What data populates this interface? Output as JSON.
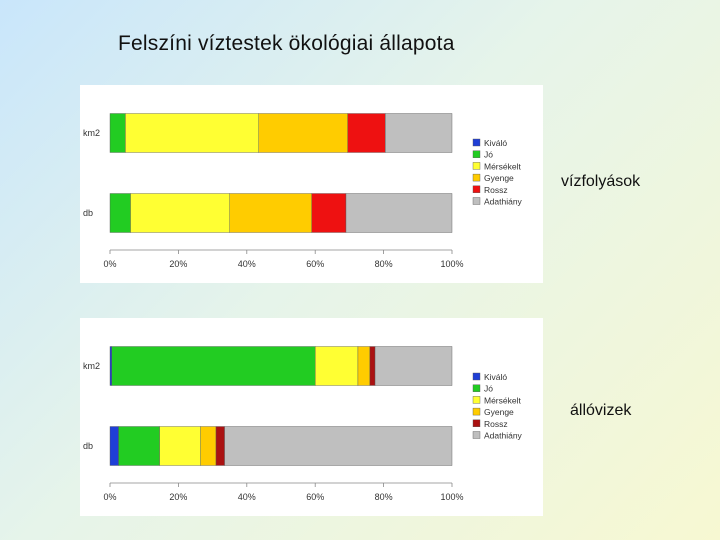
{
  "page": {
    "title": "Felszíni víztestek ökológiai állapota"
  },
  "labels": {
    "first": "vízfolyások",
    "second": "állóvizek"
  },
  "chart_data": [
    {
      "type": "bar",
      "orientation": "horizontal",
      "stacked": true,
      "categories": [
        "km2",
        "db"
      ],
      "series": [
        {
          "name": "Kiváló",
          "color": "#1f3fd6",
          "values": [
            0,
            0
          ]
        },
        {
          "name": "Jó",
          "color": "#22cc22",
          "values": [
            4.5,
            6
          ]
        },
        {
          "name": "Mérsékelt",
          "color": "#ffff33",
          "values": [
            39,
            29
          ]
        },
        {
          "name": "Gyenge",
          "color": "#ffcc00",
          "values": [
            26,
            24
          ]
        },
        {
          "name": "Rossz",
          "color": "#ee1111",
          "values": [
            11,
            10
          ]
        },
        {
          "name": "Adathiány",
          "color": "#bfbfbf",
          "values": [
            19.5,
            31
          ]
        }
      ],
      "xticks": [
        "0%",
        "20%",
        "40%",
        "60%",
        "80%",
        "100%"
      ],
      "xlim": [
        0,
        100
      ],
      "grid": false,
      "legend": "right"
    },
    {
      "type": "bar",
      "orientation": "horizontal",
      "stacked": true,
      "categories": [
        "km2",
        "db"
      ],
      "series": [
        {
          "name": "Kiváló",
          "color": "#1f3fd6",
          "values": [
            0.5,
            2.5
          ]
        },
        {
          "name": "Jó",
          "color": "#22cc22",
          "values": [
            59.5,
            12
          ]
        },
        {
          "name": "Mérsékelt",
          "color": "#ffff33",
          "values": [
            12.5,
            12
          ]
        },
        {
          "name": "Gyenge",
          "color": "#ffcc00",
          "values": [
            3.5,
            4.5
          ]
        },
        {
          "name": "Rossz",
          "color": "#aa1111",
          "values": [
            1.5,
            2.5
          ]
        },
        {
          "name": "Adathiány",
          "color": "#bfbfbf",
          "values": [
            22.5,
            66.5
          ]
        }
      ],
      "xticks": [
        "0%",
        "20%",
        "40%",
        "60%",
        "80%",
        "100%"
      ],
      "xlim": [
        0,
        100
      ],
      "grid": false,
      "legend": "right"
    }
  ]
}
